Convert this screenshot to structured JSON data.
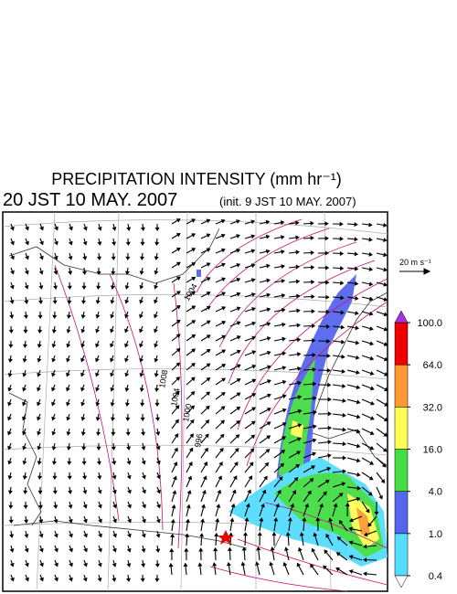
{
  "header": {
    "title": "PRECIPITATION INTENSITY (mm hr⁻¹)",
    "valid_time": "20 JST 10 MAY. 2007",
    "init_time": "(init. 9 JST 10 MAY. 2007)"
  },
  "reference_vector": {
    "label": "20 m s⁻¹"
  },
  "isobar_labels": [
    "1004",
    "1008",
    "1004",
    "1000",
    "996"
  ],
  "colorbar": {
    "levels": [
      0.4,
      {
        "value": 1,
        "label": "1.0"
      },
      {
        "value": 4,
        "label": "4.0"
      },
      {
        "value": 16,
        "label": "16.0"
      },
      {
        "value": 32,
        "label": "32.0"
      },
      {
        "value": 64,
        "label": "64.0"
      },
      {
        "value": 100,
        "label": "100.0"
      }
    ],
    "colors": [
      "#55ddff",
      "#5566ee",
      "#44dd44",
      "#ffff55",
      "#ff9933",
      "#ee0000"
    ],
    "under_color": "#ffffff",
    "over_color": "#aa33dd"
  }
}
